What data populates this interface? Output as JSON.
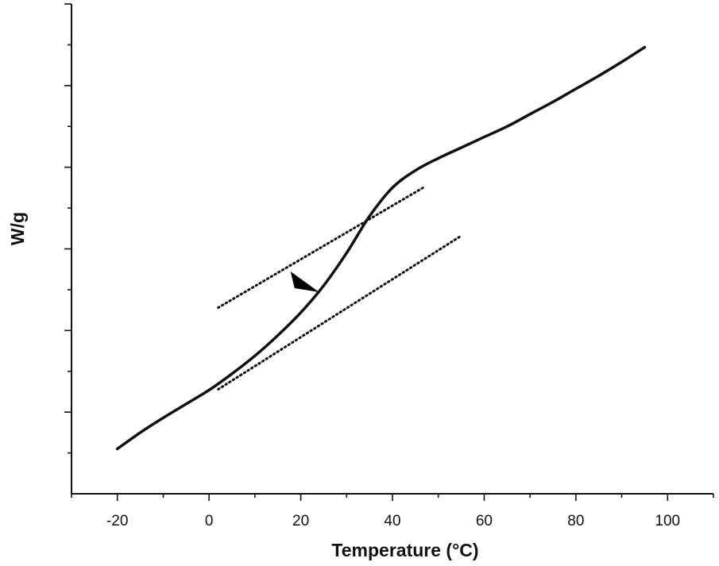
{
  "chart_data": {
    "type": "line",
    "title": "",
    "xlabel": "Temperature (°C)",
    "ylabel": "W/g",
    "xlim": [
      -30,
      110
    ],
    "ylim": [
      0,
      6
    ],
    "x_ticks": [
      -20,
      0,
      20,
      40,
      60,
      80,
      100
    ],
    "x_minor_ticks": [
      -30,
      -20,
      -10,
      0,
      10,
      20,
      30,
      40,
      50,
      60,
      70,
      80,
      90,
      100,
      110
    ],
    "y_major_ticks": [
      1,
      2,
      3,
      4,
      5,
      6
    ],
    "y_minor_ticks": [
      0.5,
      1.5,
      2.5,
      3.5,
      4.5,
      5.5
    ],
    "y_tick_labels_shown": false,
    "grid": false,
    "colors": {
      "line": "#111111",
      "axis": "#111111",
      "background": "#ffffff"
    },
    "series": [
      {
        "x": [
          -20,
          -15,
          -10,
          -5,
          0,
          5,
          10,
          15,
          20,
          25,
          30,
          35,
          40,
          45,
          50,
          55,
          60,
          65,
          70,
          75,
          80,
          85,
          90,
          95
        ],
        "y": [
          0.55,
          0.75,
          0.93,
          1.1,
          1.27,
          1.47,
          1.69,
          1.94,
          2.22,
          2.55,
          2.95,
          3.4,
          3.75,
          3.96,
          4.11,
          4.24,
          4.37,
          4.5,
          4.65,
          4.8,
          4.96,
          5.12,
          5.29,
          5.47
        ]
      }
    ],
    "tangent_lines": [
      {
        "style": "dotted",
        "x": [
          2,
          47
        ],
        "y": [
          2.28,
          3.76
        ]
      },
      {
        "style": "dotted",
        "x": [
          2,
          55
        ],
        "y": [
          1.28,
          3.16
        ]
      }
    ],
    "annotations": [
      {
        "type": "arrowhead",
        "x": 24,
        "y": 2.47
      }
    ]
  }
}
